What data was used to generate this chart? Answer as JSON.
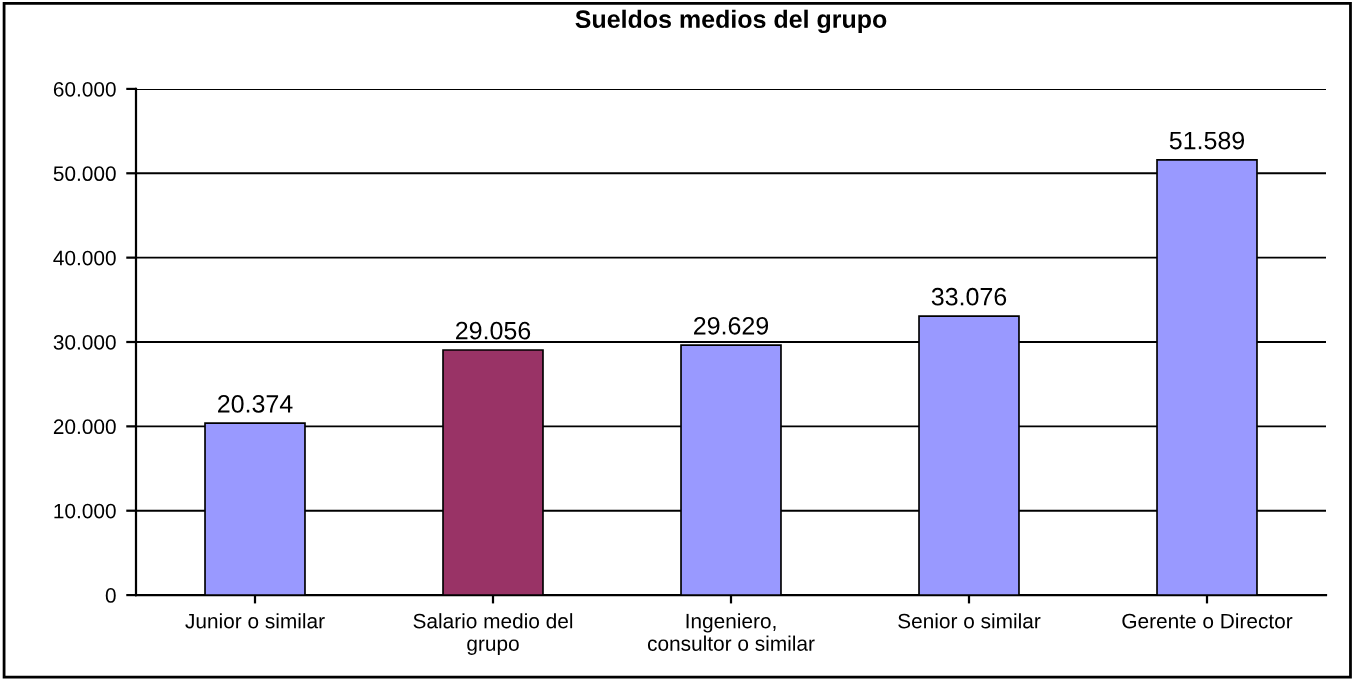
{
  "chart_data": {
    "type": "bar",
    "title": "Sueldos medios del grupo",
    "categories": [
      "Junior o similar",
      "Salario medio del grupo",
      "Ingeniero, consultor o similar",
      "Senior o similar",
      "Gerente o Director"
    ],
    "values": [
      20374,
      29056,
      29629,
      33076,
      51589
    ],
    "value_labels": [
      "20.374",
      "29.056",
      "29.629",
      "33.076",
      "51.589"
    ],
    "colors": [
      "#9999ff",
      "#993366",
      "#9999ff",
      "#9999ff",
      "#9999ff"
    ],
    "ylim": [
      0,
      60000
    ],
    "yticks": [
      0,
      {
        "value": 10000,
        "label": "10.000"
      },
      {
        "value": 20000,
        "label": "20.000"
      },
      {
        "value": 30000,
        "label": "30.000"
      },
      {
        "value": 40000,
        "label": "40.000"
      },
      {
        "value": 50000,
        "label": "50.000"
      },
      {
        "value": 60000,
        "label": "60.000"
      }
    ],
    "grid": "y",
    "legend": false
  }
}
